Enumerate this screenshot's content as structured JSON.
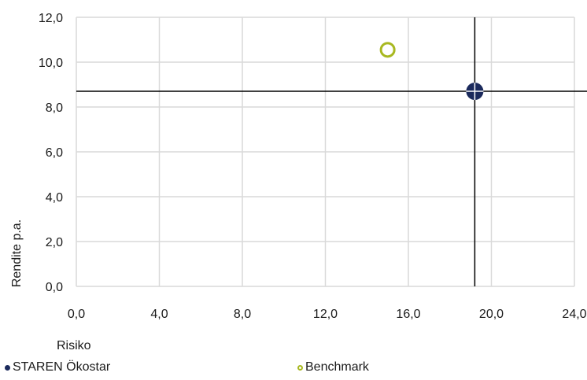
{
  "chart_data": {
    "type": "scatter",
    "xlabel": "Risiko",
    "ylabel": "Rendite p.a.",
    "xlim": [
      0,
      24
    ],
    "ylim": [
      0,
      12
    ],
    "xticks": [
      "0,0",
      "4,0",
      "8,0",
      "12,0",
      "16,0",
      "20,0",
      "24,0"
    ],
    "yticks": [
      "0,0",
      "2,0",
      "4,0",
      "6,0",
      "8,0",
      "10,0",
      "12,0"
    ],
    "grid": true,
    "legend_position": "bottom",
    "series": [
      {
        "name": "STAREN Ökostar",
        "x": 19.2,
        "y": 8.7,
        "color": "#1b2a5c",
        "marker": "filled-circle-crosshair"
      },
      {
        "name": "Benchmark",
        "x": 15.0,
        "y": 10.55,
        "color": "#a8b820",
        "marker": "hollow-circle"
      }
    ]
  }
}
